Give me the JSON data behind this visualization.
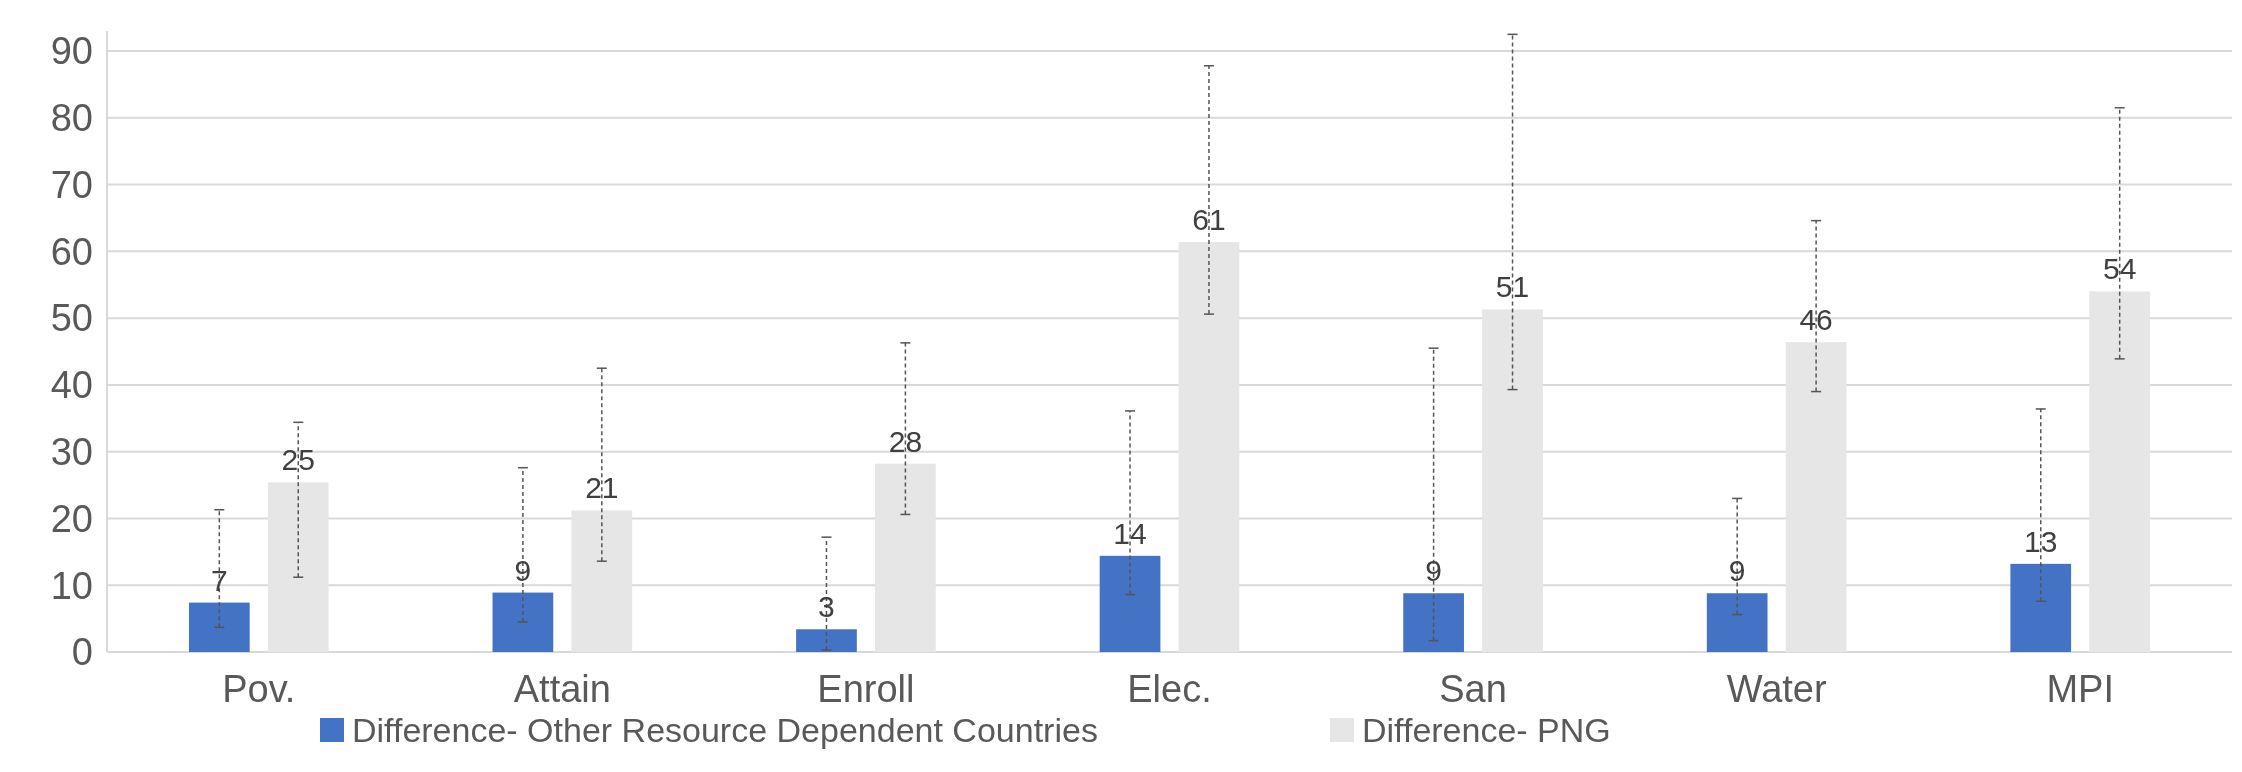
{
  "chart_data": {
    "type": "bar",
    "categories": [
      "Pov.",
      "Attain",
      "Enroll",
      "Elec.",
      "San",
      "Water",
      "MPI"
    ],
    "series": [
      {
        "name": "Difference- Other Resource Dependent Countries",
        "color": "#4472c4",
        "values": [
          7.4,
          8.9,
          3.4,
          14.4,
          8.8,
          8.8,
          13.2
        ],
        "value_labels": [
          "7",
          "9",
          "3",
          "14",
          "9",
          "9",
          "13"
        ],
        "errors": [
          [
            3.7,
            21.3
          ],
          [
            4.5,
            27.6
          ],
          [
            0.3,
            17.2
          ],
          [
            8.6,
            36.1
          ],
          [
            1.7,
            45.5
          ],
          [
            5.6,
            23.0
          ],
          [
            7.6,
            36.4
          ]
        ]
      },
      {
        "name": "Difference- PNG",
        "color": "#e7e6e6",
        "values": [
          25.4,
          21.2,
          28.2,
          61.4,
          51.3,
          46.4,
          54.0
        ],
        "value_labels": [
          "25",
          "21",
          "28",
          "61",
          "51",
          "46",
          "54"
        ],
        "errors": [
          [
            11.2,
            34.4
          ],
          [
            13.6,
            42.5
          ],
          [
            20.6,
            46.3
          ],
          [
            50.6,
            87.8
          ],
          [
            39.3,
            92.5
          ],
          [
            39.0,
            64.6
          ],
          [
            43.9,
            81.5
          ]
        ]
      }
    ],
    "ylim": [
      0,
      93
    ],
    "yticks": [
      0,
      10,
      20,
      30,
      40,
      50,
      60,
      70,
      80,
      90
    ],
    "grid": "y",
    "legend": "bottom"
  }
}
